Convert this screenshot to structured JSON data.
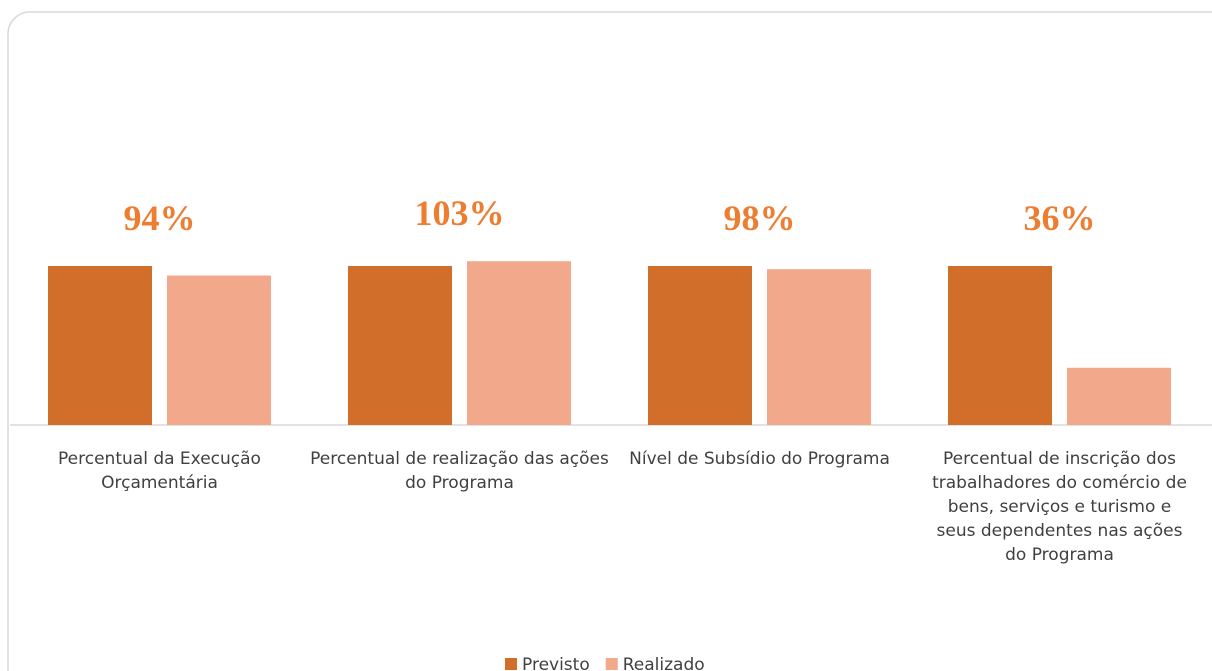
{
  "chart_data": {
    "type": "bar",
    "categories": [
      "Percentual da Execução Orçamentária",
      "Percentual de realização das ações do Programa",
      "Nível de Subsídio do Programa",
      "Percentual de inscrição dos trabalhadores do comércio de bens, serviços e turismo e seus dependentes nas ações do Programa"
    ],
    "series": [
      {
        "name": "Previsto",
        "color": "#d06e2a",
        "values": [
          100,
          100,
          100,
          100
        ]
      },
      {
        "name": "Realizado",
        "color": "#f1a88b",
        "values": [
          94,
          103,
          98,
          36
        ],
        "value_labels": [
          "94%",
          "103%",
          "98%",
          "36%"
        ]
      }
    ],
    "legend": "bottom"
  }
}
